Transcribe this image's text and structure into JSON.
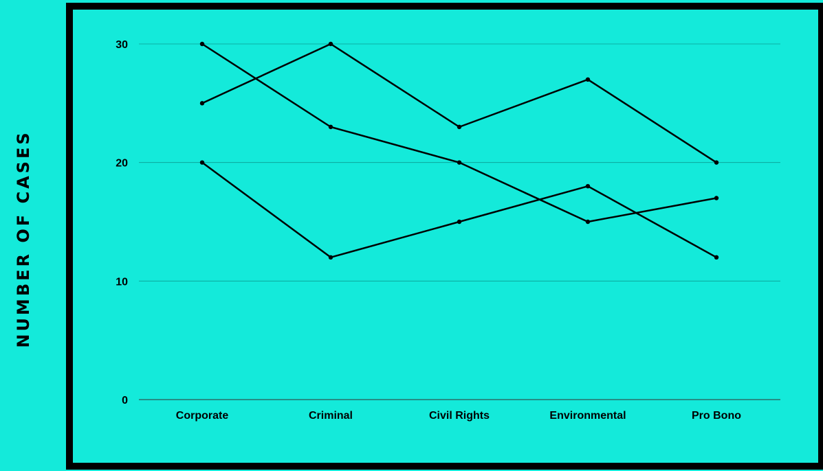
{
  "chart_data": {
    "type": "line",
    "title": "",
    "xlabel": "",
    "ylabel": "NUMBER OF CASES",
    "categories": [
      "Corporate",
      "Criminal",
      "Civil Rights",
      "Environmental",
      "Pro Bono"
    ],
    "series": [
      {
        "values": [
          25,
          30,
          23,
          27,
          20
        ]
      },
      {
        "values": [
          30,
          23,
          20,
          15,
          17
        ]
      },
      {
        "values": [
          20,
          12,
          15,
          18,
          12
        ]
      }
    ],
    "ylim": [
      0,
      30
    ],
    "yticks": [
      "0",
      "10",
      "20",
      "30"
    ],
    "grid": true,
    "legend": "none"
  },
  "colors": {
    "background": "#14eada",
    "frame": "#000000",
    "gridline": "#0a9d92",
    "series_line": "#000000"
  }
}
